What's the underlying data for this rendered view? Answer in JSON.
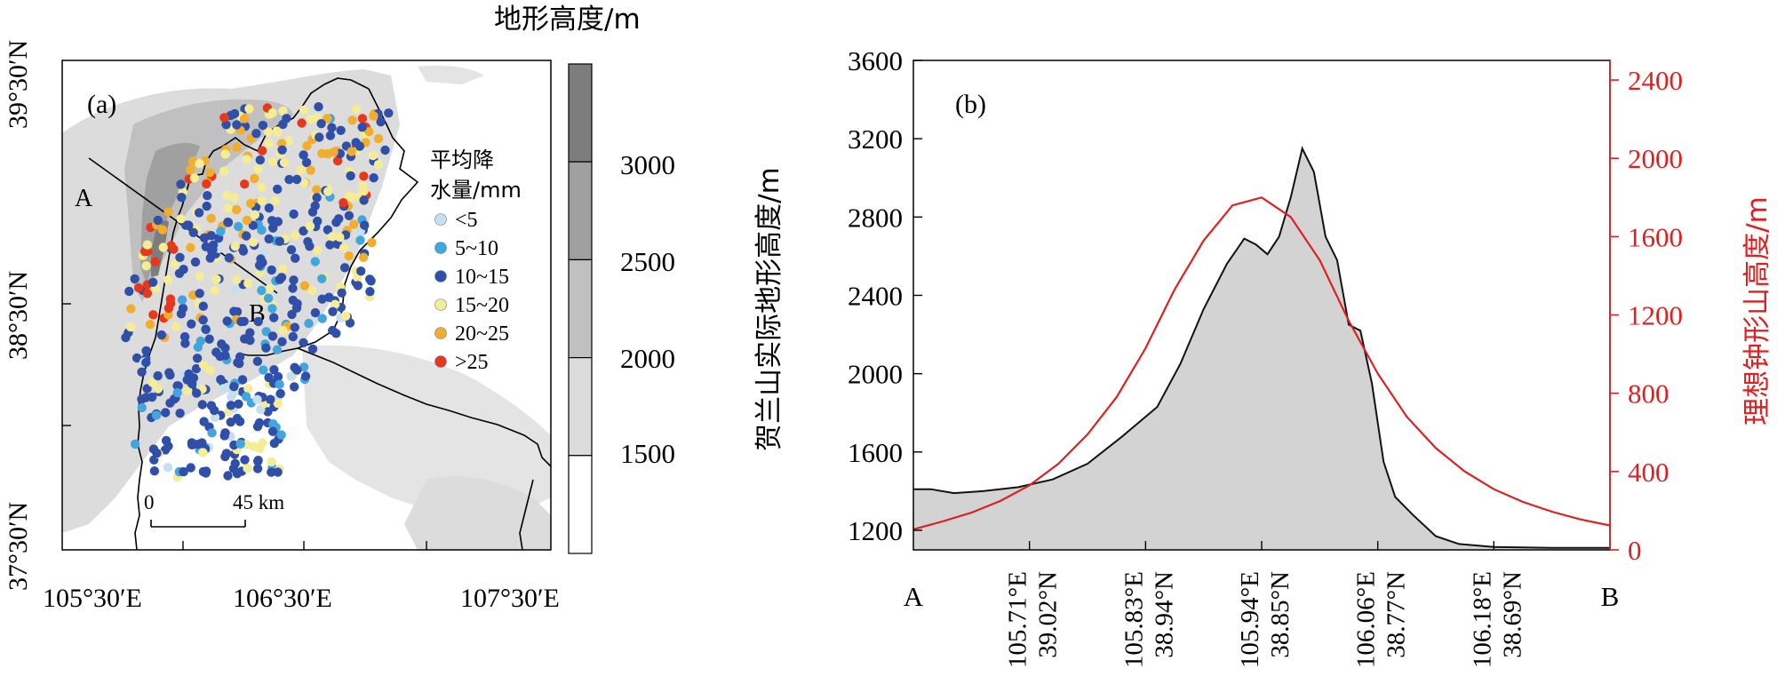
{
  "panel_a": {
    "label": "(a)",
    "colorbar": {
      "title": "地形高度/m",
      "tick_labels": [
        "3000",
        "2500",
        "2000",
        "1500"
      ],
      "levels": [
        {
          "min": 3000,
          "max": 3500,
          "color": "#7d7d7d"
        },
        {
          "min": 2500,
          "max": 3000,
          "color": "#a0a0a0"
        },
        {
          "min": 2000,
          "max": 2500,
          "color": "#c0c0c0"
        },
        {
          "min": 1500,
          "max": 2000,
          "color": "#dcdcdc"
        },
        {
          "min": 1000,
          "max": 1500,
          "color": "#ffffff"
        }
      ]
    },
    "lat_labels": [
      "39°30′N",
      "38°30′N",
      "37°30′N"
    ],
    "lon_labels": [
      "105°30′E",
      "106°30′E",
      "107°30′E"
    ],
    "legend": {
      "title_line1": "平均降",
      "title_line2": "水量/mm",
      "classes": [
        {
          "label": "<5",
          "color": "#c6e0f0"
        },
        {
          "label": "5~10",
          "color": "#42a5dc"
        },
        {
          "label": "10~15",
          "color": "#2f4fa8"
        },
        {
          "label": "15~20",
          "color": "#f5ec96"
        },
        {
          "label": "20~25",
          "color": "#f2ad2c"
        },
        {
          "label": ">25",
          "color": "#e8381c"
        }
      ]
    },
    "section_labels": {
      "start": "A",
      "end": "B"
    },
    "scalebar": {
      "start": "0",
      "end": "45 km"
    }
  },
  "chart_data": {
    "type": "area",
    "label": "(b)",
    "ylabel_left": "贺兰山实际地形高度/m",
    "ylabel_right": "理想钟形山高度/m",
    "ylim_left": [
      1100,
      3600
    ],
    "ylim_right": [
      0,
      2500
    ],
    "yticks_left": [
      1200,
      1600,
      2000,
      2400,
      2800,
      3200,
      3600
    ],
    "yticks_right": [
      0,
      400,
      800,
      1200,
      1600,
      2000,
      2400
    ],
    "xlim": [
      0,
      6
    ],
    "x_ticks": [
      {
        "x": 0,
        "label": "A"
      },
      {
        "x": 1,
        "lon": "105.71°E",
        "lat": "39.02°N"
      },
      {
        "x": 2,
        "lon": "105.83°E",
        "lat": "38.94°N"
      },
      {
        "x": 3,
        "lon": "105.94°E",
        "lat": "38.85°N"
      },
      {
        "x": 4,
        "lon": "106.06°E",
        "lat": "38.77°N"
      },
      {
        "x": 5,
        "lon": "106.18°E",
        "lat": "38.69°N"
      },
      {
        "x": 6,
        "label": "B"
      }
    ],
    "right_axis_color": "#e02020",
    "fill_color": "#d3d3d3",
    "series": [
      {
        "axis": "left",
        "style": "filled-area",
        "x": [
          0,
          0.15,
          0.35,
          0.6,
          0.9,
          1.2,
          1.5,
          1.8,
          2.1,
          2.3,
          2.5,
          2.7,
          2.85,
          2.95,
          3.05,
          3.15,
          3.25,
          3.35,
          3.45,
          3.55,
          3.65,
          3.75,
          3.85,
          3.95,
          4.05,
          4.15,
          4.3,
          4.5,
          4.7,
          5.0,
          5.5,
          6.0
        ],
        "y": [
          1410,
          1410,
          1390,
          1400,
          1420,
          1460,
          1540,
          1680,
          1830,
          2050,
          2330,
          2560,
          2690,
          2660,
          2610,
          2700,
          2900,
          3150,
          3030,
          2700,
          2580,
          2250,
          2220,
          1950,
          1550,
          1370,
          1280,
          1170,
          1130,
          1115,
          1110,
          1110
        ]
      },
      {
        "axis": "right",
        "style": "line",
        "color": "#e02020",
        "x": [
          0,
          0.25,
          0.5,
          0.75,
          1.0,
          1.25,
          1.5,
          1.75,
          2.0,
          2.25,
          2.5,
          2.75,
          3.0,
          3.25,
          3.5,
          3.75,
          4.0,
          4.25,
          4.5,
          4.75,
          5.0,
          5.25,
          5.5,
          5.75,
          6.0
        ],
        "y": [
          105,
          145,
          190,
          250,
          330,
          440,
          590,
          780,
          1030,
          1330,
          1580,
          1760,
          1800,
          1700,
          1480,
          1170,
          900,
          680,
          520,
          400,
          310,
          245,
          195,
          155,
          125
        ]
      }
    ]
  }
}
